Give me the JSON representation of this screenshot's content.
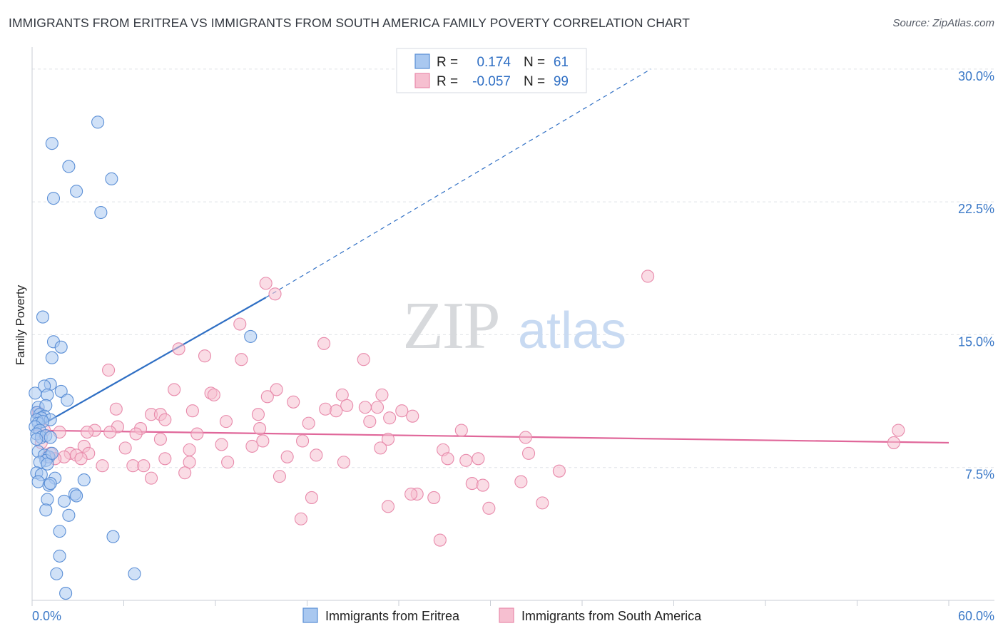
{
  "header": {
    "title": "IMMIGRANTS FROM ERITREA VS IMMIGRANTS FROM SOUTH AMERICA FAMILY POVERTY CORRELATION CHART",
    "source": "Source: ZipAtlas.com"
  },
  "colors": {
    "blue_fill": "#a9c8f0",
    "blue_stroke": "#5b8fd6",
    "blue_line": "#2f6fc4",
    "pink_fill": "#f6bfd0",
    "pink_stroke": "#e88aab",
    "pink_line": "#e0679a",
    "tick_text": "#3a78c7",
    "grid": "#dfe3e8"
  },
  "chart_data": {
    "type": "scatter",
    "ylabel": "Family Poverty",
    "xlim": [
      0,
      60
    ],
    "ylim": [
      0,
      31
    ],
    "x_ticks": [
      "0.0%",
      "60.0%"
    ],
    "y_ticks": [
      {
        "value": 7.5,
        "label": "7.5%"
      },
      {
        "value": 15.0,
        "label": "15.0%"
      },
      {
        "value": 22.5,
        "label": "22.5%"
      },
      {
        "value": 30.0,
        "label": "30.0%"
      }
    ],
    "watermark": {
      "zip": "ZIP",
      "atlas": "atlas"
    },
    "legend": {
      "rows": [
        {
          "r_label": "R =",
          "r_value": "0.174",
          "n_label": "N =",
          "n_value": "61"
        },
        {
          "r_label": "R =",
          "r_value": "-0.057",
          "n_label": "N =",
          "n_value": "99"
        }
      ]
    },
    "series": [
      {
        "name": "Immigrants from Eritrea",
        "color": "blue",
        "trend": {
          "x0": 0,
          "y0": 9.6,
          "x1": 15.3,
          "y1": 17.1,
          "dash_to_x": 40.5,
          "dash_to_y": 30.0
        },
        "points": [
          [
            4.3,
            27.0
          ],
          [
            1.3,
            25.8
          ],
          [
            2.4,
            24.5
          ],
          [
            5.2,
            23.8
          ],
          [
            2.9,
            23.1
          ],
          [
            1.4,
            22.7
          ],
          [
            4.5,
            21.9
          ],
          [
            0.7,
            16.0
          ],
          [
            14.3,
            14.9
          ],
          [
            1.4,
            14.6
          ],
          [
            1.9,
            14.3
          ],
          [
            1.3,
            13.7
          ],
          [
            0.2,
            11.7
          ],
          [
            1.2,
            12.2
          ],
          [
            0.8,
            12.1
          ],
          [
            1.9,
            11.8
          ],
          [
            1.0,
            11.6
          ],
          [
            2.3,
            11.3
          ],
          [
            0.4,
            10.9
          ],
          [
            0.9,
            11.0
          ],
          [
            0.3,
            10.6
          ],
          [
            0.5,
            10.5
          ],
          [
            0.8,
            10.4
          ],
          [
            0.6,
            10.3
          ],
          [
            1.2,
            10.2
          ],
          [
            0.3,
            10.2
          ],
          [
            0.4,
            10.0
          ],
          [
            0.7,
            10.1
          ],
          [
            0.2,
            9.8
          ],
          [
            0.5,
            9.6
          ],
          [
            0.3,
            9.4
          ],
          [
            0.6,
            9.2
          ],
          [
            0.9,
            9.3
          ],
          [
            1.2,
            9.2
          ],
          [
            0.4,
            8.4
          ],
          [
            0.8,
            8.2
          ],
          [
            1.1,
            8.1
          ],
          [
            0.9,
            7.9
          ],
          [
            0.5,
            7.8
          ],
          [
            1.0,
            7.7
          ],
          [
            0.3,
            7.2
          ],
          [
            0.6,
            7.1
          ],
          [
            1.5,
            6.9
          ],
          [
            3.4,
            6.8
          ],
          [
            0.4,
            6.7
          ],
          [
            1.1,
            6.5
          ],
          [
            1.2,
            6.6
          ],
          [
            2.8,
            6.0
          ],
          [
            2.9,
            5.9
          ],
          [
            1.0,
            5.7
          ],
          [
            2.1,
            5.6
          ],
          [
            0.9,
            5.1
          ],
          [
            2.4,
            4.8
          ],
          [
            1.8,
            3.9
          ],
          [
            5.3,
            3.6
          ],
          [
            1.8,
            2.5
          ],
          [
            1.6,
            1.5
          ],
          [
            6.7,
            1.5
          ],
          [
            2.2,
            0.4
          ],
          [
            0.3,
            9.1
          ],
          [
            1.3,
            8.3
          ]
        ]
      },
      {
        "name": "Immigrants from South America",
        "color": "pink",
        "trend": {
          "x0": 0,
          "y0": 9.6,
          "x1": 60,
          "y1": 8.9
        },
        "points": [
          [
            15.3,
            17.9
          ],
          [
            15.9,
            17.3
          ],
          [
            40.3,
            18.3
          ],
          [
            13.6,
            15.6
          ],
          [
            19.1,
            14.5
          ],
          [
            9.6,
            14.2
          ],
          [
            11.3,
            13.8
          ],
          [
            13.7,
            13.6
          ],
          [
            21.7,
            13.6
          ],
          [
            5.0,
            13.0
          ],
          [
            9.3,
            11.9
          ],
          [
            16.0,
            11.9
          ],
          [
            11.7,
            11.7
          ],
          [
            11.9,
            11.6
          ],
          [
            15.4,
            11.5
          ],
          [
            20.3,
            11.6
          ],
          [
            22.9,
            11.6
          ],
          [
            17.1,
            11.2
          ],
          [
            20.6,
            11.0
          ],
          [
            21.8,
            10.9
          ],
          [
            22.6,
            10.9
          ],
          [
            5.5,
            10.8
          ],
          [
            10.5,
            10.7
          ],
          [
            19.2,
            10.8
          ],
          [
            19.9,
            10.7
          ],
          [
            24.2,
            10.7
          ],
          [
            7.8,
            10.5
          ],
          [
            8.4,
            10.5
          ],
          [
            14.8,
            10.5
          ],
          [
            8.7,
            10.2
          ],
          [
            12.7,
            10.1
          ],
          [
            22.1,
            10.1
          ],
          [
            23.4,
            10.3
          ],
          [
            24.9,
            10.4
          ],
          [
            18.1,
            10.0
          ],
          [
            5.6,
            9.8
          ],
          [
            7.1,
            9.7
          ],
          [
            14.9,
            9.7
          ],
          [
            4.1,
            9.6
          ],
          [
            5.1,
            9.5
          ],
          [
            6.8,
            9.4
          ],
          [
            10.8,
            9.4
          ],
          [
            28.1,
            9.6
          ],
          [
            8.4,
            9.1
          ],
          [
            17.7,
            9.0
          ],
          [
            23.3,
            9.1
          ],
          [
            32.3,
            9.2
          ],
          [
            1.8,
            9.5
          ],
          [
            3.6,
            9.5
          ],
          [
            0.8,
            9.6
          ],
          [
            0.4,
            10.6
          ],
          [
            15.1,
            9.0
          ],
          [
            12.4,
            8.8
          ],
          [
            14.4,
            8.7
          ],
          [
            3.4,
            8.7
          ],
          [
            6.1,
            8.6
          ],
          [
            10.3,
            8.5
          ],
          [
            22.8,
            8.6
          ],
          [
            26.9,
            8.5
          ],
          [
            56.7,
            9.6
          ],
          [
            56.4,
            8.9
          ],
          [
            1.2,
            8.3
          ],
          [
            2.5,
            8.3
          ],
          [
            2.1,
            8.1
          ],
          [
            2.9,
            8.2
          ],
          [
            3.7,
            8.3
          ],
          [
            1.0,
            8.1
          ],
          [
            3.2,
            8.0
          ],
          [
            8.7,
            8.0
          ],
          [
            10.3,
            7.8
          ],
          [
            12.8,
            7.8
          ],
          [
            16.7,
            8.1
          ],
          [
            18.6,
            8.2
          ],
          [
            20.4,
            7.8
          ],
          [
            27.2,
            8.0
          ],
          [
            28.4,
            7.9
          ],
          [
            29.2,
            8.0
          ],
          [
            32.5,
            8.3
          ],
          [
            4.6,
            7.6
          ],
          [
            6.6,
            7.6
          ],
          [
            7.3,
            7.6
          ],
          [
            10.0,
            7.2
          ],
          [
            34.5,
            7.3
          ],
          [
            16.2,
            7.0
          ],
          [
            7.8,
            6.9
          ],
          [
            28.8,
            6.6
          ],
          [
            32.0,
            6.7
          ],
          [
            25.2,
            6.0
          ],
          [
            24.8,
            6.0
          ],
          [
            18.3,
            5.8
          ],
          [
            26.3,
            5.8
          ],
          [
            23.3,
            5.3
          ],
          [
            29.5,
            6.5
          ],
          [
            33.4,
            5.5
          ],
          [
            29.9,
            5.2
          ],
          [
            17.6,
            4.6
          ],
          [
            26.7,
            3.4
          ],
          [
            1.5,
            8.0
          ],
          [
            0.6,
            8.9
          ]
        ]
      }
    ]
  }
}
